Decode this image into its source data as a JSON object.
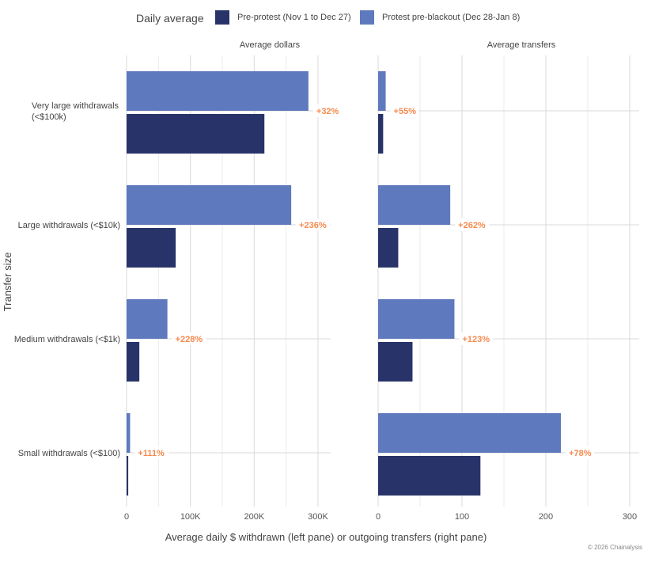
{
  "legend": {
    "title": "Daily average",
    "items": [
      {
        "label": "Pre-protest (Nov 1 to Dec 27)",
        "color": "#283469"
      },
      {
        "label": "Protest pre-blackout (Dec 28-Jan 8)",
        "color": "#5e79bd"
      }
    ]
  },
  "chart_data": {
    "type": "bar",
    "orientation": "horizontal",
    "ylabel": "Transfer size",
    "xlabel": "Average daily $ withdrawn (left pane) or outgoing transfers (right pane)",
    "categories": [
      "Very large withdrawals (<$100k)",
      "Large withdrawals (<$10k)",
      "Medium withdrawals (<$1k)",
      "Small withdrawals (<$100)"
    ],
    "category_lines": [
      [
        "Very large withdrawals",
        "(<$100k)"
      ],
      [
        "Large withdrawals (<$10k)"
      ],
      [
        "Medium withdrawals (<$1k)"
      ],
      [
        "Small withdrawals (<$100)"
      ]
    ],
    "panels": [
      {
        "title": "Average dollars",
        "xlim": [
          0,
          300000
        ],
        "ticks": [
          0,
          100000,
          200000,
          300000
        ],
        "tick_labels": [
          "0",
          "100K",
          "200K",
          "300K"
        ],
        "series": [
          {
            "name": "Protest pre-blackout (Dec 28-Jan 8)",
            "color": "#5e79bd",
            "values": [
              285000,
              258000,
              64000,
              5500
            ]
          },
          {
            "name": "Pre-protest (Nov 1 to Dec 27)",
            "color": "#283469",
            "values": [
              216000,
              77000,
              20000,
              2600
            ]
          }
        ],
        "annotations": [
          "+32%",
          "+236%",
          "+228%",
          "+111%"
        ]
      },
      {
        "title": "Average transfers",
        "xlim": [
          0,
          300
        ],
        "ticks": [
          0,
          100,
          200,
          300
        ],
        "tick_labels": [
          "0",
          "100",
          "200",
          "300"
        ],
        "series": [
          {
            "name": "Protest pre-blackout (Dec 28-Jan 8)",
            "color": "#5e79bd",
            "values": [
              9,
              86,
              91,
              218
            ]
          },
          {
            "name": "Pre-protest (Nov 1 to Dec 27)",
            "color": "#283469",
            "values": [
              6,
              24,
              41,
              122
            ]
          }
        ],
        "annotations": [
          "+55%",
          "+262%",
          "+123%",
          "+78%"
        ]
      }
    ],
    "annotation_color": "#f58a4e",
    "grid": true,
    "legend_position": "top"
  },
  "footer": {
    "copyright": "© 2026 Chainalysis"
  }
}
